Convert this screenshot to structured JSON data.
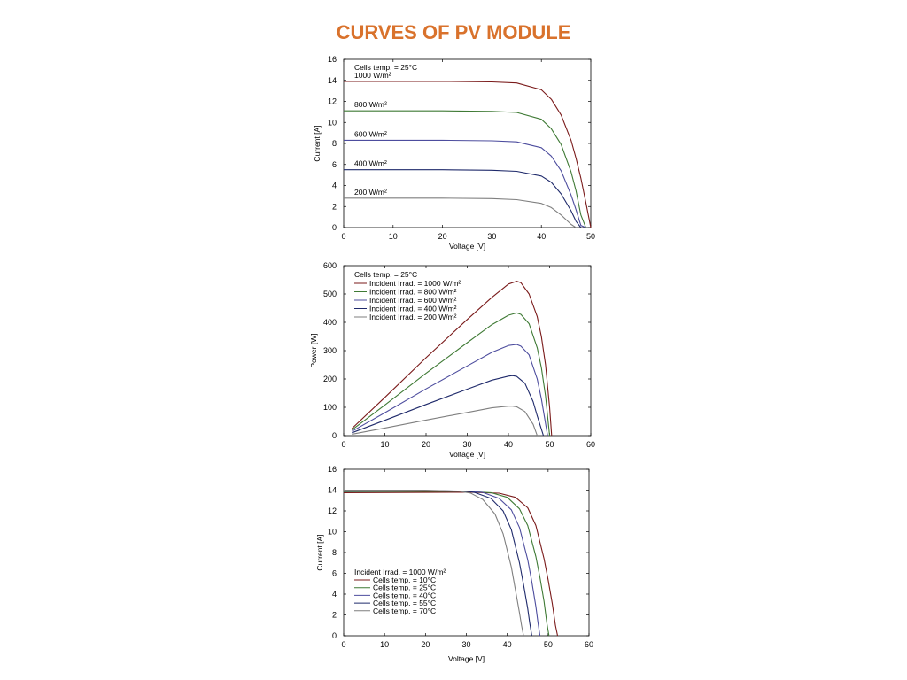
{
  "title": "CURVES OF PV MODULE",
  "chart_data": [
    {
      "type": "line",
      "annotation": "Cells temp. = 25°C",
      "xlabel": "Voltage [V]",
      "ylabel": "Current  [A]",
      "xlim": [
        0,
        50
      ],
      "ylim": [
        0,
        16
      ],
      "xticks": [
        0,
        10,
        20,
        30,
        40,
        50
      ],
      "yticks": [
        0,
        2,
        4,
        6,
        8,
        10,
        12,
        14,
        16
      ],
      "grid": false,
      "x": [
        0,
        10,
        20,
        30,
        35,
        40,
        42,
        44,
        46,
        47,
        48,
        49,
        49.5,
        50
      ],
      "series": [
        {
          "name": "1000 W/m²",
          "color": "#7a1a1a",
          "values": [
            13.9,
            13.9,
            13.9,
            13.85,
            13.75,
            13.1,
            12.2,
            10.7,
            8.3,
            6.6,
            4.7,
            2.4,
            1.2,
            0
          ]
        },
        {
          "name": "800 W/m²",
          "color": "#3f7a35",
          "values": [
            11.1,
            11.1,
            11.1,
            11.05,
            10.95,
            10.3,
            9.4,
            7.9,
            5.3,
            3.5,
            1.2,
            0,
            null,
            null
          ]
        },
        {
          "name": "600 W/m²",
          "color": "#4d4d9e",
          "values": [
            8.3,
            8.3,
            8.3,
            8.25,
            8.15,
            7.6,
            6.8,
            5.4,
            3.1,
            1.7,
            0.2,
            0,
            null,
            null
          ]
        },
        {
          "name": "400 W/m²",
          "color": "#1f2a6b",
          "values": [
            5.5,
            5.5,
            5.5,
            5.45,
            5.35,
            4.9,
            4.3,
            3.2,
            1.6,
            0.6,
            0,
            null,
            null,
            null
          ]
        },
        {
          "name": "200 W/m²",
          "color": "#7f7f7f",
          "values": [
            2.8,
            2.8,
            2.8,
            2.75,
            2.65,
            2.3,
            1.9,
            1.2,
            0.3,
            0,
            null,
            null,
            null,
            null
          ]
        }
      ]
    },
    {
      "type": "line",
      "annotation": "Cells temp. = 25°C",
      "xlabel": "Voltage [V]",
      "ylabel": "Power  [W]",
      "xlim": [
        0,
        60
      ],
      "ylim": [
        0,
        600
      ],
      "xticks": [
        0,
        10,
        20,
        30,
        40,
        50,
        60
      ],
      "yticks": [
        0,
        100,
        200,
        300,
        400,
        500,
        600
      ],
      "grid": false,
      "legend": "top-left",
      "series": [
        {
          "name": "Incident Irrad. = 1000 W/m²",
          "color": "#7a1a1a",
          "x": [
            2,
            10,
            20,
            30,
            36,
            40,
            42,
            43,
            45,
            47,
            48,
            49,
            50,
            50.5
          ],
          "values": [
            25,
            135,
            275,
            410,
            488,
            535,
            545,
            540,
            500,
            420,
            350,
            250,
            100,
            0
          ]
        },
        {
          "name": "Incident Irrad. = 800 W/m²",
          "color": "#3f7a35",
          "x": [
            2,
            10,
            20,
            30,
            36,
            40,
            42,
            43,
            45,
            47,
            48,
            49,
            50
          ],
          "values": [
            20,
            108,
            220,
            328,
            392,
            425,
            433,
            428,
            395,
            310,
            240,
            140,
            0
          ]
        },
        {
          "name": "Incident Irrad. = 600 W/m²",
          "color": "#4d4d9e",
          "x": [
            2,
            10,
            20,
            30,
            36,
            40,
            42,
            43,
            45,
            47,
            48,
            49.5
          ],
          "values": [
            15,
            81,
            165,
            246,
            294,
            318,
            322,
            316,
            285,
            200,
            130,
            0
          ]
        },
        {
          "name": "Incident Irrad. = 400 W/m²",
          "color": "#1f2a6b",
          "x": [
            2,
            10,
            20,
            30,
            36,
            40,
            41,
            42,
            44,
            46,
            47,
            48.5
          ],
          "values": [
            10,
            54,
            110,
            164,
            196,
            210,
            212,
            209,
            185,
            120,
            70,
            0
          ]
        },
        {
          "name": "Incident Irrad. = 200 W/m²",
          "color": "#7f7f7f",
          "x": [
            2,
            10,
            20,
            30,
            36,
            40,
            41,
            42,
            44,
            46,
            47
          ],
          "values": [
            5,
            27,
            55,
            82,
            98,
            104,
            104,
            102,
            85,
            40,
            0
          ]
        }
      ]
    },
    {
      "type": "line",
      "annotation": "Incident Irrad. = 1000 W/m²",
      "xlabel": "Voltage [V]",
      "ylabel": "Current  [A]",
      "xlim": [
        0,
        60
      ],
      "ylim": [
        0,
        16
      ],
      "xticks": [
        0,
        10,
        20,
        30,
        40,
        50,
        60
      ],
      "yticks": [
        0,
        2,
        4,
        6,
        8,
        10,
        12,
        14,
        16
      ],
      "grid": false,
      "legend": "bottom-left",
      "series": [
        {
          "name": "Cells temp. = 10°C",
          "color": "#7a1a1a",
          "x": [
            0,
            20,
            30,
            38,
            42,
            45,
            47,
            49,
            50,
            51,
            51.8,
            52.3
          ],
          "values": [
            13.75,
            13.78,
            13.8,
            13.7,
            13.3,
            12.3,
            10.6,
            7.4,
            5.4,
            3.1,
            1.0,
            0
          ]
        },
        {
          "name": "Cells temp. = 25°C",
          "color": "#3f7a35",
          "x": [
            0,
            20,
            30,
            36,
            40,
            43,
            45,
            47,
            48,
            49,
            49.7,
            50.2
          ],
          "values": [
            13.85,
            13.87,
            13.88,
            13.75,
            13.3,
            12.2,
            10.6,
            7.6,
            5.6,
            3.3,
            1.2,
            0
          ]
        },
        {
          "name": "Cells temp. = 40°C",
          "color": "#4d4d9e",
          "x": [
            0,
            20,
            30,
            34,
            38,
            41,
            43,
            45,
            46,
            47,
            47.5,
            48
          ],
          "values": [
            13.9,
            13.92,
            13.9,
            13.78,
            13.2,
            12.1,
            10.4,
            7.3,
            5.2,
            2.8,
            1.3,
            0
          ]
        },
        {
          "name": "Cells temp. = 55°C",
          "color": "#1f2a6b",
          "x": [
            0,
            20,
            30,
            32,
            36,
            39,
            41,
            43,
            44,
            45,
            45.5,
            46
          ],
          "values": [
            13.95,
            13.97,
            13.9,
            13.78,
            13.2,
            12.0,
            10.2,
            7.0,
            4.9,
            2.6,
            1.2,
            0
          ]
        },
        {
          "name": "Cells temp. = 70°C",
          "color": "#7f7f7f",
          "x": [
            0,
            20,
            28,
            31,
            34,
            37,
            39,
            41,
            42,
            43,
            43.5,
            44
          ],
          "values": [
            14.0,
            14.0,
            13.9,
            13.72,
            13.1,
            11.7,
            9.8,
            6.6,
            4.4,
            2.2,
            1.0,
            0
          ]
        }
      ]
    }
  ]
}
